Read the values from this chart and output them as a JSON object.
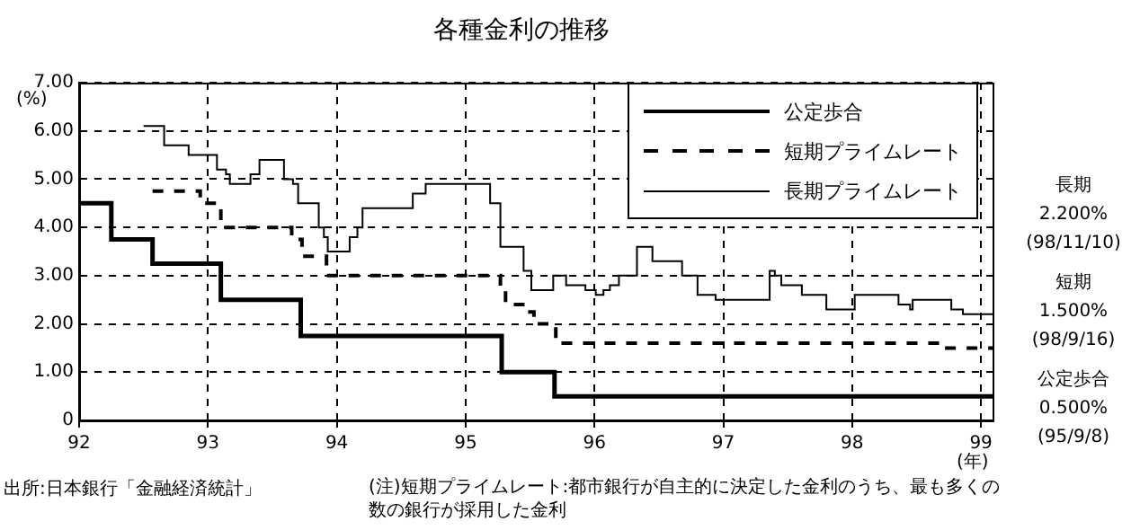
{
  "chart_data": {
    "type": "step",
    "title": "各種金利の推移",
    "xlabel": "(年)",
    "ylabel": "(%)",
    "xlim": [
      1992,
      1999.09
    ],
    "xticks": [
      {
        "value": 1992,
        "label": "92"
      },
      {
        "value": 1993,
        "label": "93"
      },
      {
        "value": 1994,
        "label": "94"
      },
      {
        "value": 1995,
        "label": "95"
      },
      {
        "value": 1996,
        "label": "96"
      },
      {
        "value": 1997,
        "label": "97"
      },
      {
        "value": 1998,
        "label": "98"
      },
      {
        "value": 1999,
        "label": "99"
      }
    ],
    "ylim": [
      0,
      7
    ],
    "yticks": [
      0,
      {
        "value": 1,
        "label": "1.00"
      },
      {
        "value": 2,
        "label": "2.00"
      },
      {
        "value": 3,
        "label": "3.00"
      },
      {
        "value": 4,
        "label": "4.00"
      },
      {
        "value": 5,
        "label": "5.00"
      },
      {
        "value": 6,
        "label": "6.00"
      },
      {
        "value": 7,
        "label": "7.00"
      }
    ],
    "grid": true,
    "legend": "top right",
    "marker": "none",
    "series": [
      {
        "name": "公定歩合",
        "color": "#000000",
        "line_style": "solid",
        "x": [
          1992,
          1992.25,
          1992.57,
          1993.1,
          1993.72,
          1995.28,
          1995.69,
          1999.09
        ],
        "values": [
          4.5,
          3.75,
          3.25,
          2.5,
          1.75,
          1,
          0.5,
          0.5
        ]
      },
      {
        "name": "短期プライムレート",
        "color": "#000000",
        "line_style": "dashed",
        "x": [
          1992.57,
          1992.94,
          1993.1,
          1993.65,
          1993.73,
          1993.92,
          1995.27,
          1995.31,
          1995.48,
          1995.53,
          1995.7,
          1998.71,
          1999.09
        ],
        "values": [
          4.75,
          4.5,
          4,
          3.75,
          3.4,
          3,
          2.75,
          2.4,
          2.25,
          2,
          1.6,
          1.5,
          1.5
        ]
      },
      {
        "name": "長期プライムレート",
        "color": "#000000",
        "line_style": "solid",
        "x": [
          1992.5,
          1992.66,
          1992.85,
          1993.07,
          1993.14,
          1993.17,
          1993.33,
          1993.4,
          1993.59,
          1993.66,
          1993.7,
          1993.86,
          1993.9,
          1993.93,
          1994.1,
          1994.16,
          1994.2,
          1994.59,
          1994.69,
          1995.19,
          1995.27,
          1995.45,
          1995.51,
          1995.68,
          1995.78,
          1995.93,
          1996.01,
          1996.07,
          1996.12,
          1996.19,
          1996.33,
          1996.45,
          1996.68,
          1996.8,
          1996.94,
          1997.36,
          1997.4,
          1997.45,
          1997.61,
          1997.8,
          1998.02,
          1998.36,
          1998.45,
          1998.47,
          1998.77,
          1998.86,
          1999.09
        ],
        "values": [
          6.1,
          5.7,
          5.5,
          5.2,
          5.1,
          4.9,
          5.1,
          5.4,
          5,
          4.9,
          4.5,
          4,
          3.8,
          3.5,
          3.8,
          4,
          4.4,
          4.7,
          4.9,
          4.5,
          3.6,
          3.1,
          2.7,
          3,
          2.8,
          2.7,
          2.6,
          2.7,
          2.8,
          3,
          3.6,
          3.3,
          3,
          2.6,
          2.5,
          3.1,
          3,
          2.8,
          2.6,
          2.3,
          2.6,
          2.4,
          2.3,
          2.5,
          2.3,
          2.2,
          2.2
        ]
      }
    ],
    "annotations": [
      "長期",
      "2.200%",
      "(98/11/10)",
      "短期",
      "1.500%",
      "(98/9/16)",
      "公定歩合",
      "0.500%",
      "(95/9/8)",
      "出所:日本銀行「金融経済統計」",
      "(注)短期プライムレート:都市銀行が自主的に決定した金利のうち、最も多くの数の銀行が採用した金利"
    ]
  }
}
